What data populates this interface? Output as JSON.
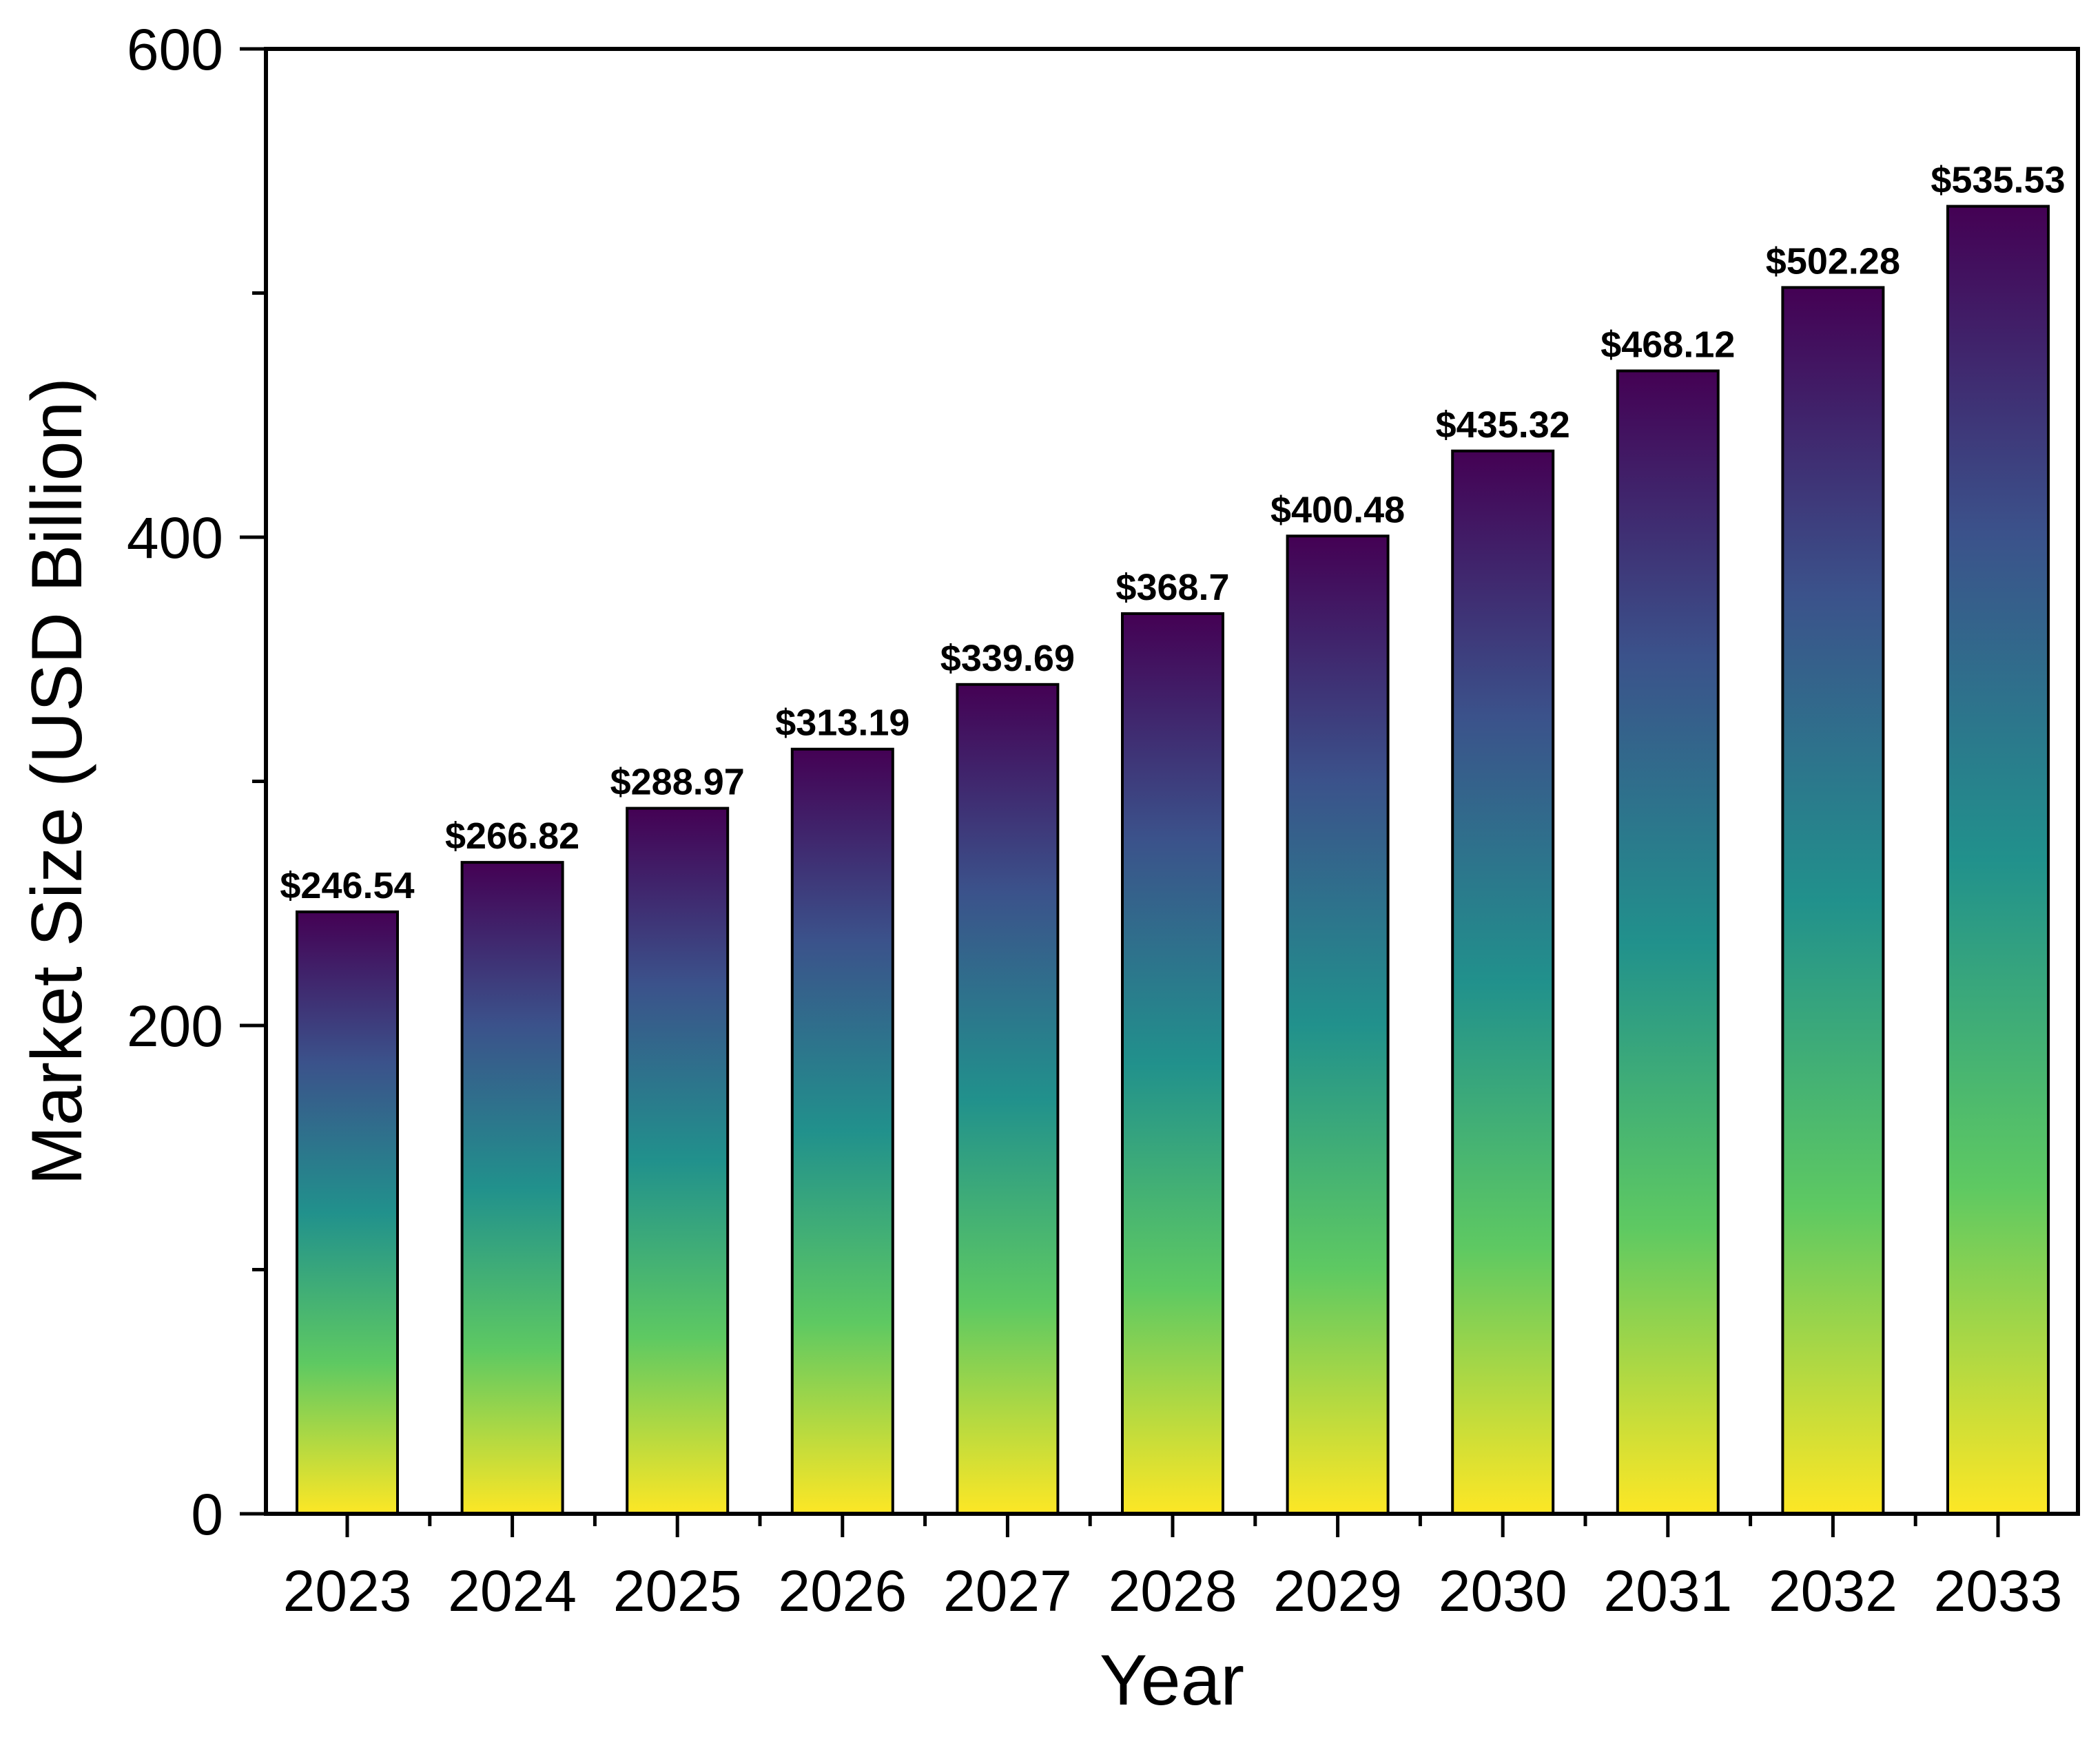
{
  "chart_data": {
    "type": "bar",
    "title": "",
    "xlabel": "Year",
    "ylabel": "Market Size (USD Billion)",
    "categories": [
      "2023",
      "2024",
      "2025",
      "2026",
      "2027",
      "2028",
      "2029",
      "2030",
      "2031",
      "2032",
      "2033"
    ],
    "values": [
      246.54,
      266.82,
      288.97,
      313.19,
      339.69,
      368.7,
      400.48,
      435.32,
      468.12,
      502.28,
      535.53
    ],
    "data_labels": [
      "$246.54",
      "$266.82",
      "$288.97",
      "$313.19",
      "$339.69",
      "$368.7",
      "$400.48",
      "$435.32",
      "$468.12",
      "$502.28",
      "$535.53"
    ],
    "ylim": [
      0,
      600
    ],
    "yticks": [
      0,
      200,
      400,
      600
    ],
    "y_minor_ticks": [
      100,
      300,
      500
    ],
    "grid": false,
    "legend": "none",
    "gradient_colors": [
      "#fde725",
      "#5ec962",
      "#21918c",
      "#3b528b",
      "#440154"
    ]
  }
}
